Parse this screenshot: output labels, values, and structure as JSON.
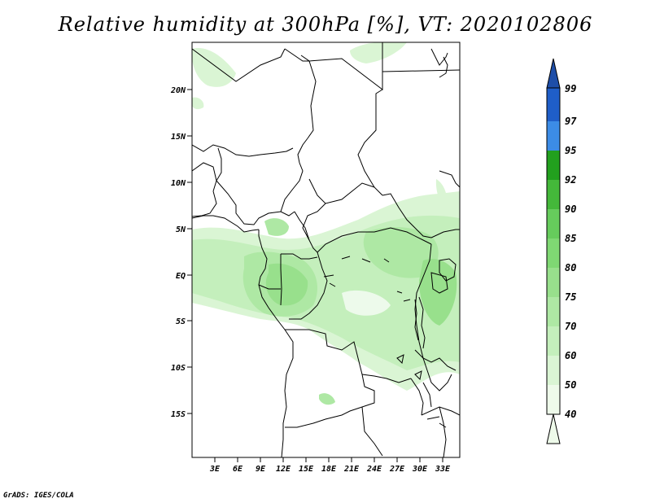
{
  "title": "Relative humidity at 300hPa [%], VT: 2020102806",
  "credit": "GrADS: IGES/COLA",
  "map": {
    "lat_labels": [
      "20N",
      "15N",
      "10N",
      "5N",
      "EQ",
      "5S",
      "10S",
      "15S"
    ],
    "lon_labels": [
      "3E",
      "6E",
      "9E",
      "12E",
      "15E",
      "18E",
      "21E",
      "24E",
      "27E",
      "30E",
      "33E"
    ]
  },
  "colorbar": {
    "levels": [
      "40",
      "50",
      "60",
      "70",
      "75",
      "80",
      "85",
      "90",
      "92",
      "95",
      "97",
      "99"
    ],
    "colors": {
      "c40": "#eefaea",
      "c50": "#daf5d4",
      "c60": "#c4efbc",
      "c70": "#aee8a4",
      "c75": "#98e08c",
      "c80": "#7fd873",
      "c85": "#66cc5c",
      "c90": "#44b83a",
      "c92": "#22a01e",
      "c95": "#0f8a10",
      "c97": "#3c8ce6",
      "c99": "#1f5ec8",
      "top": "#1e4ea8"
    }
  }
}
